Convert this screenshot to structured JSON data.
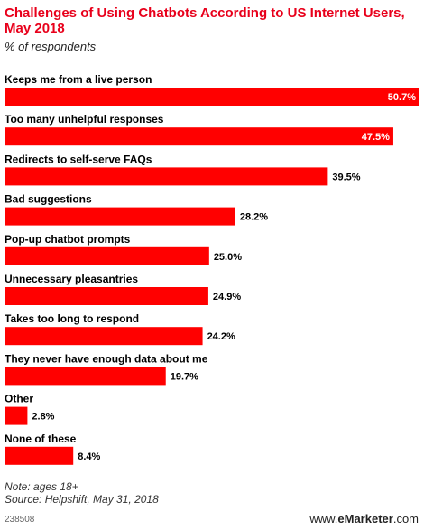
{
  "title": "Challenges of Using Chatbots According to US Internet Users, May 2018",
  "subtitle": "% of respondents",
  "notes": {
    "note": "Note: ages 18+",
    "source": "Source: Helpshift, May 31, 2018"
  },
  "footer": {
    "chart_id": "238508",
    "brand_prefix": "www.",
    "brand_name": "eMarketer",
    "brand_suffix": ".com"
  },
  "colors": {
    "bar": "#ff0000",
    "title": "#e8001b"
  },
  "chart_data": {
    "type": "bar",
    "orientation": "horizontal",
    "categories": [
      "Keeps me from a live person",
      "Too many unhelpful responses",
      "Redirects to self-serve FAQs",
      "Bad suggestions",
      "Pop-up chatbot prompts",
      "Unnecessary pleasantries",
      "Takes too long to respond",
      "They never have enough data about me",
      "Other",
      "None of these"
    ],
    "values": [
      50.7,
      47.5,
      39.5,
      28.2,
      25.0,
      24.9,
      24.2,
      19.7,
      2.8,
      8.4
    ],
    "value_labels": [
      "50.7%",
      "47.5%",
      "39.5%",
      "28.2%",
      "25.0%",
      "24.9%",
      "24.2%",
      "19.7%",
      "2.8%",
      "8.4%"
    ],
    "xlim": [
      0,
      50.7
    ],
    "grid": false,
    "legend": "none"
  }
}
